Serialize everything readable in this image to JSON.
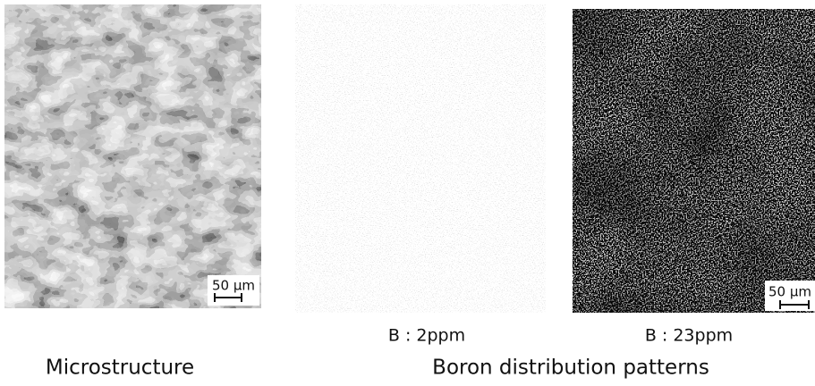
{
  "panels": [
    {
      "scale_bar": "50 μm"
    },
    {
      "label": "B : 2ppm"
    },
    {
      "label": "B : 23ppm",
      "scale_bar": "50 μm"
    }
  ],
  "captions": [
    "Microstructure",
    "Boron distribution patterns"
  ]
}
